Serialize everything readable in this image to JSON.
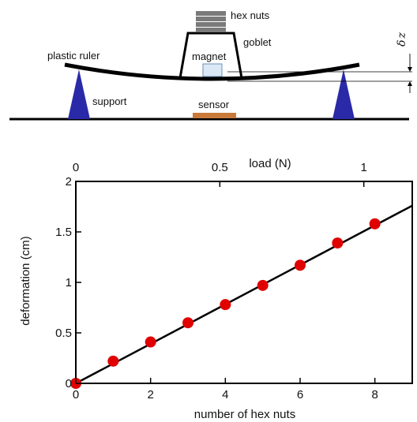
{
  "schematic": {
    "labels": {
      "hex_nuts": "hex nuts",
      "goblet": "goblet",
      "plastic_ruler": "plastic ruler",
      "magnet": "magnet",
      "support": "support",
      "sensor": "sensor",
      "delta_symbol": "δ",
      "z_symbol": "z"
    },
    "colors": {
      "support": "#2a2aa8",
      "sensor": "#c97a3a",
      "magnet_fill": "#dbe9f7",
      "magnet_stroke": "#6b8fb5",
      "nuts": "#7a7a7a",
      "line": "#000000"
    },
    "nut_count_shown": 4
  },
  "chart_data": {
    "type": "scatter",
    "xlabel": "number of hex nuts",
    "ylabel": "deformation (cm)",
    "top_xlabel": "load (N)",
    "xlim": [
      0,
      9
    ],
    "ylim": [
      0,
      2
    ],
    "xticks": [
      0,
      2,
      4,
      6,
      8
    ],
    "xtick_labels": [
      "0",
      "2",
      "4",
      "6",
      "8"
    ],
    "yticks": [
      0,
      0.5,
      1,
      1.5,
      2
    ],
    "ytick_labels": [
      "0",
      "0.5",
      "1",
      "1.5",
      "2"
    ],
    "top_ticks": [
      0,
      0.5,
      1
    ],
    "top_tick_labels": [
      "0",
      "0.5",
      "1"
    ],
    "top_axis_newtons_per_nut": 0.1298,
    "grid": false,
    "series": [
      {
        "name": "",
        "marker": "circle",
        "color": "#e00000",
        "x": [
          0,
          1,
          2,
          3,
          4,
          5,
          6,
          7,
          8
        ],
        "y": [
          0.0,
          0.22,
          0.41,
          0.6,
          0.78,
          0.97,
          1.17,
          1.39,
          1.58
        ]
      }
    ],
    "fit_line": {
      "x": [
        0,
        9
      ],
      "y": [
        0.0,
        1.76
      ],
      "color": "#000000"
    }
  }
}
